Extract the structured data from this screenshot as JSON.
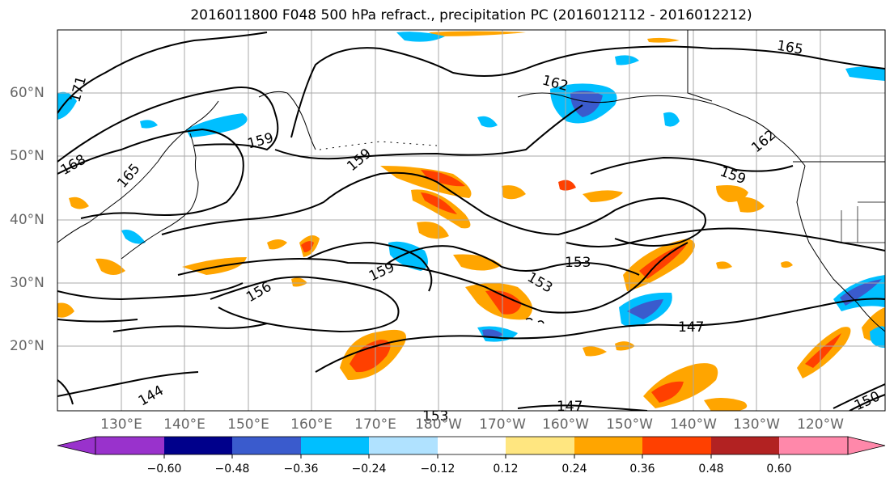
{
  "title": "2016011800 F048 500 hPa refract., precipitation PC (2016012112 - 2016012212)",
  "lat_labels": [
    "60°N",
    "50°N",
    "40°N",
    "30°N",
    "20°N"
  ],
  "lon_labels": [
    "130°E",
    "140°E",
    "150°E",
    "160°E",
    "170°E",
    "180°W",
    "170°W",
    "160°W",
    "150°W",
    "140°W",
    "130°W",
    "120°W"
  ],
  "contour_labels": [
    "165",
    "171",
    "168",
    "165",
    "159",
    "159",
    "162",
    "162",
    "159",
    "159",
    "153",
    "153",
    "156",
    "153",
    "147",
    "144",
    "147",
    "150"
  ],
  "colorbar": {
    "ticks": [
      "−0.60",
      "−0.48",
      "−0.36",
      "−0.24",
      "−0.12",
      "0.12",
      "0.24",
      "0.36",
      "0.48",
      "0.60"
    ],
    "colors": [
      "#9932cc",
      "#00008b",
      "#3a5bcd",
      "#00bfff",
      "#b0e2ff",
      "#ffffff",
      "#ffe680",
      "#ffa500",
      "#ff4000",
      "#b22222",
      "#ff88aa"
    ]
  },
  "palette": {
    "contour": "#000000",
    "grid": "#999999",
    "coast": "#000000"
  }
}
